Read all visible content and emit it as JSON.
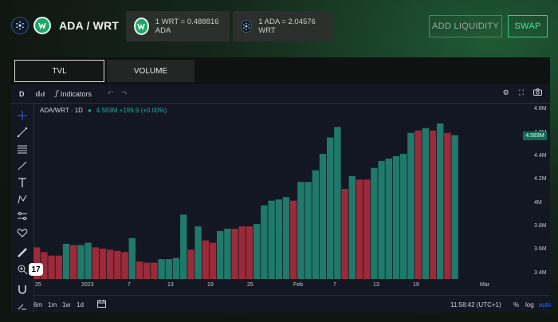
{
  "header": {
    "pair_title": "ADA / WRT",
    "ada_icon": "ada-coin-icon",
    "wrt_icon": "wrt-coin-icon",
    "link_icon": "link-icon"
  },
  "rates": [
    {
      "label": "1 WRT = 0.488816 ADA",
      "icon": "wrt-coin-icon"
    },
    {
      "label": "1 ADA = 2.04576 WRT",
      "icon": "ada-coin-icon"
    }
  ],
  "buttons": {
    "add_liquidity": "ADD LIQUIDITY",
    "swap": "SWAP"
  },
  "tabs": [
    {
      "label": "TVL",
      "active": true
    },
    {
      "label": "VOLUME",
      "active": false
    }
  ],
  "toolbar": {
    "interval": "D",
    "indicators": "Indicators"
  },
  "legend": {
    "symbol": "ADA/WRT · 1D",
    "value": "4.583M +199.9 (+0.00%)"
  },
  "price_tag": "4.583M",
  "bottom": {
    "ranges": [
      "6m",
      "1m",
      "1w",
      "1d"
    ],
    "time": "11:58:42 (UTC+1)",
    "pct": "%",
    "log": "log",
    "auto": "auto"
  },
  "colors": {
    "up": "#1f7a6b",
    "down": "#9b2a3a",
    "accent": "#2fcf8a",
    "auto": "#2962ff"
  },
  "chart_data": {
    "type": "bar",
    "title": "",
    "ylim": [
      3.35,
      4.85
    ],
    "y_ticks": [
      "3.4M",
      "3.6M",
      "3.8M",
      "4M",
      "4.2M",
      "4.4M",
      "4.6M",
      "4.8M"
    ],
    "x_ticks": [
      "25",
      "2023",
      "7",
      "13",
      "19",
      "25",
      "Feb",
      "7",
      "13",
      "19",
      "Mar"
    ],
    "values": [
      3.62,
      3.58,
      3.55,
      3.55,
      3.65,
      3.64,
      3.64,
      3.66,
      3.62,
      3.61,
      3.6,
      3.59,
      3.58,
      3.7,
      3.5,
      3.49,
      3.49,
      3.52,
      3.52,
      3.53,
      3.9,
      3.6,
      3.8,
      3.68,
      3.66,
      3.76,
      3.78,
      3.78,
      3.8,
      3.8,
      3.82,
      3.98,
      4.02,
      4.03,
      4.05,
      4.02,
      4.18,
      4.18,
      4.28,
      4.42,
      4.56,
      4.65,
      4.12,
      4.23,
      4.2,
      4.2,
      4.3,
      4.36,
      4.38,
      4.4,
      4.42,
      4.6,
      4.62,
      4.64,
      4.62,
      4.68,
      4.6,
      4.58
    ],
    "directions": [
      "down",
      "down",
      "down",
      "down",
      "up",
      "down",
      "up",
      "up",
      "down",
      "down",
      "down",
      "down",
      "down",
      "up",
      "down",
      "down",
      "down",
      "up",
      "up",
      "up",
      "up",
      "down",
      "up",
      "down",
      "down",
      "up",
      "up",
      "down",
      "down",
      "down",
      "up",
      "up",
      "up",
      "up",
      "up",
      "down",
      "up",
      "up",
      "up",
      "up",
      "up",
      "up",
      "down",
      "up",
      "down",
      "down",
      "up",
      "up",
      "up",
      "up",
      "up",
      "up",
      "down",
      "up",
      "down",
      "up",
      "down",
      "up"
    ]
  }
}
